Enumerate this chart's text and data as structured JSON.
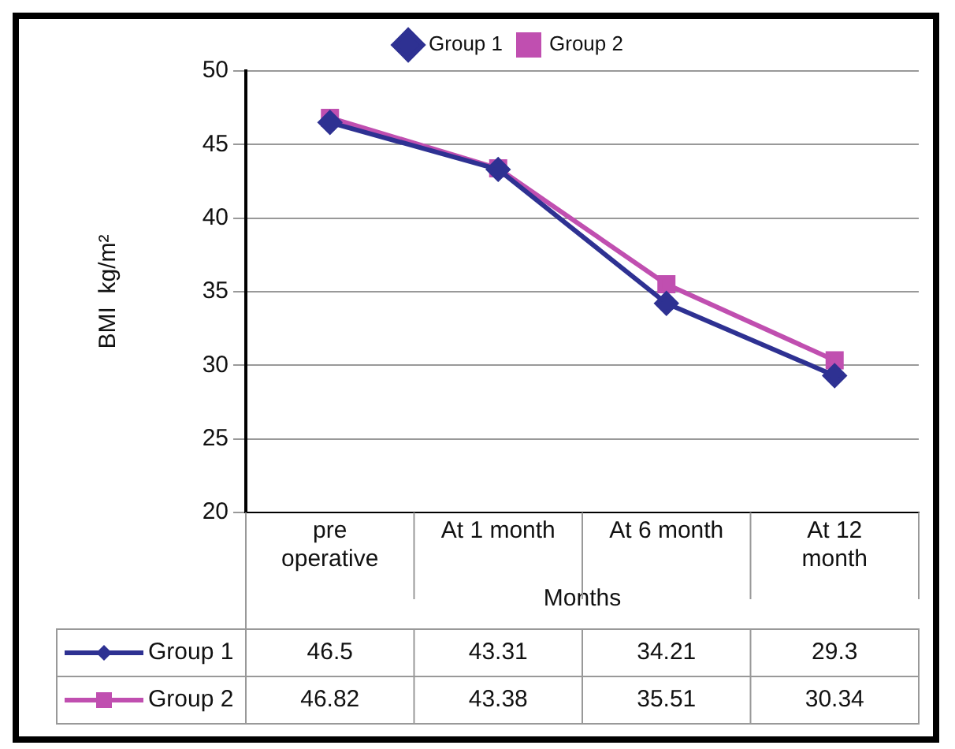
{
  "chart_data": {
    "type": "line",
    "xlabel": "Months",
    "ylabel": "BMI  kg/m²",
    "categories": [
      "pre operative",
      "At 1 month",
      "At 6 month",
      "At 12 month"
    ],
    "series": [
      {
        "name": "Group 1",
        "color": "#2e3192",
        "marker": "diamond",
        "values": [
          46.5,
          43.31,
          34.21,
          29.3
        ]
      },
      {
        "name": "Group 2",
        "color": "#c04fb0",
        "marker": "square",
        "values": [
          46.82,
          43.38,
          35.51,
          30.34
        ]
      }
    ],
    "ylim": [
      20,
      50
    ],
    "yticks": [
      20,
      25,
      30,
      35,
      40,
      45,
      50
    ],
    "grid": "y",
    "legend": "top",
    "data_labels": true
  }
}
